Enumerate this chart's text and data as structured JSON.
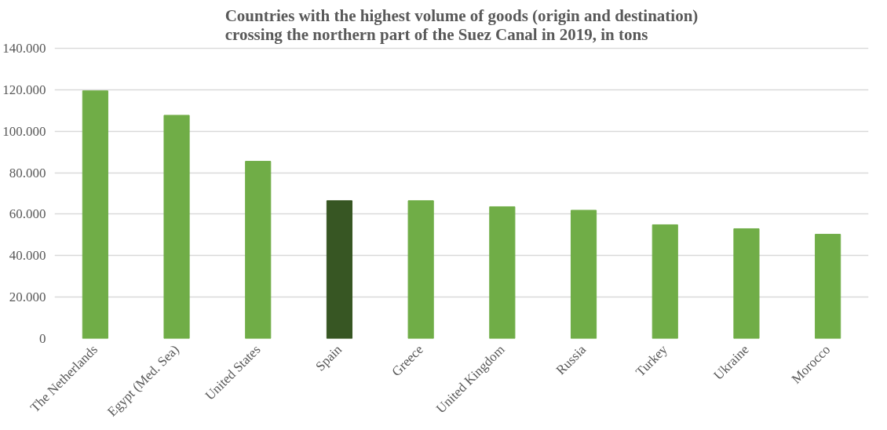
{
  "chart_data": {
    "type": "bar",
    "title": "Countries with the highest volume of goods (origin and destination)\ncrossing the northern part of the Suez Canal in 2019, in tons",
    "categories": [
      "The Netherlands",
      "Egypt (Med. Sea)",
      "United States",
      "Spain",
      "Greece",
      "United Kingdom",
      "Russia",
      "Turkey",
      "Ukraine",
      "Morocco"
    ],
    "values": [
      119500,
      107700,
      85500,
      66500,
      66500,
      63600,
      61900,
      54900,
      53000,
      50300
    ],
    "colors": [
      "#70ad47",
      "#70ad47",
      "#70ad47",
      "#375623",
      "#70ad47",
      "#70ad47",
      "#70ad47",
      "#70ad47",
      "#70ad47",
      "#70ad47"
    ],
    "ylim": [
      0,
      140000
    ],
    "yticks": [
      {
        "value": 0,
        "label": "0"
      },
      {
        "value": 20000,
        "label": "20.000"
      },
      {
        "value": 40000,
        "label": "40.000"
      },
      {
        "value": 60000,
        "label": "60.000"
      },
      {
        "value": 80000,
        "label": "80.000"
      },
      {
        "value": 100000,
        "label": "100.000"
      },
      {
        "value": 120000,
        "label": "120.000"
      },
      {
        "value": 140000,
        "label": "140.000"
      }
    ],
    "grid": "y"
  }
}
